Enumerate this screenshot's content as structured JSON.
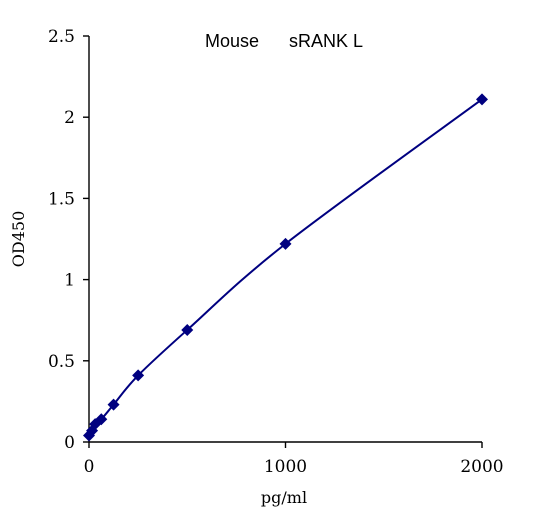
{
  "chart_data": {
    "type": "scatter",
    "title": "Mouse      sRANK L",
    "xlabel": "pg/ml",
    "ylabel": "OD450",
    "xlim": [
      0,
      2000
    ],
    "ylim": [
      0,
      2.5
    ],
    "x_ticks": [
      "0",
      "1000",
      "2000"
    ],
    "y_ticks": [
      "0",
      "0.5",
      "1",
      "1.5",
      "2",
      "2.5"
    ],
    "grid": false,
    "legend": "none",
    "series": [
      {
        "color": "#000080",
        "marker": "diamond",
        "line": "smooth",
        "x": [
          0,
          15.6,
          31.25,
          62.5,
          125,
          250,
          500,
          1000,
          2000
        ],
        "y": [
          0.04,
          0.07,
          0.11,
          0.14,
          0.23,
          0.41,
          0.69,
          1.22,
          2.11
        ]
      }
    ]
  }
}
